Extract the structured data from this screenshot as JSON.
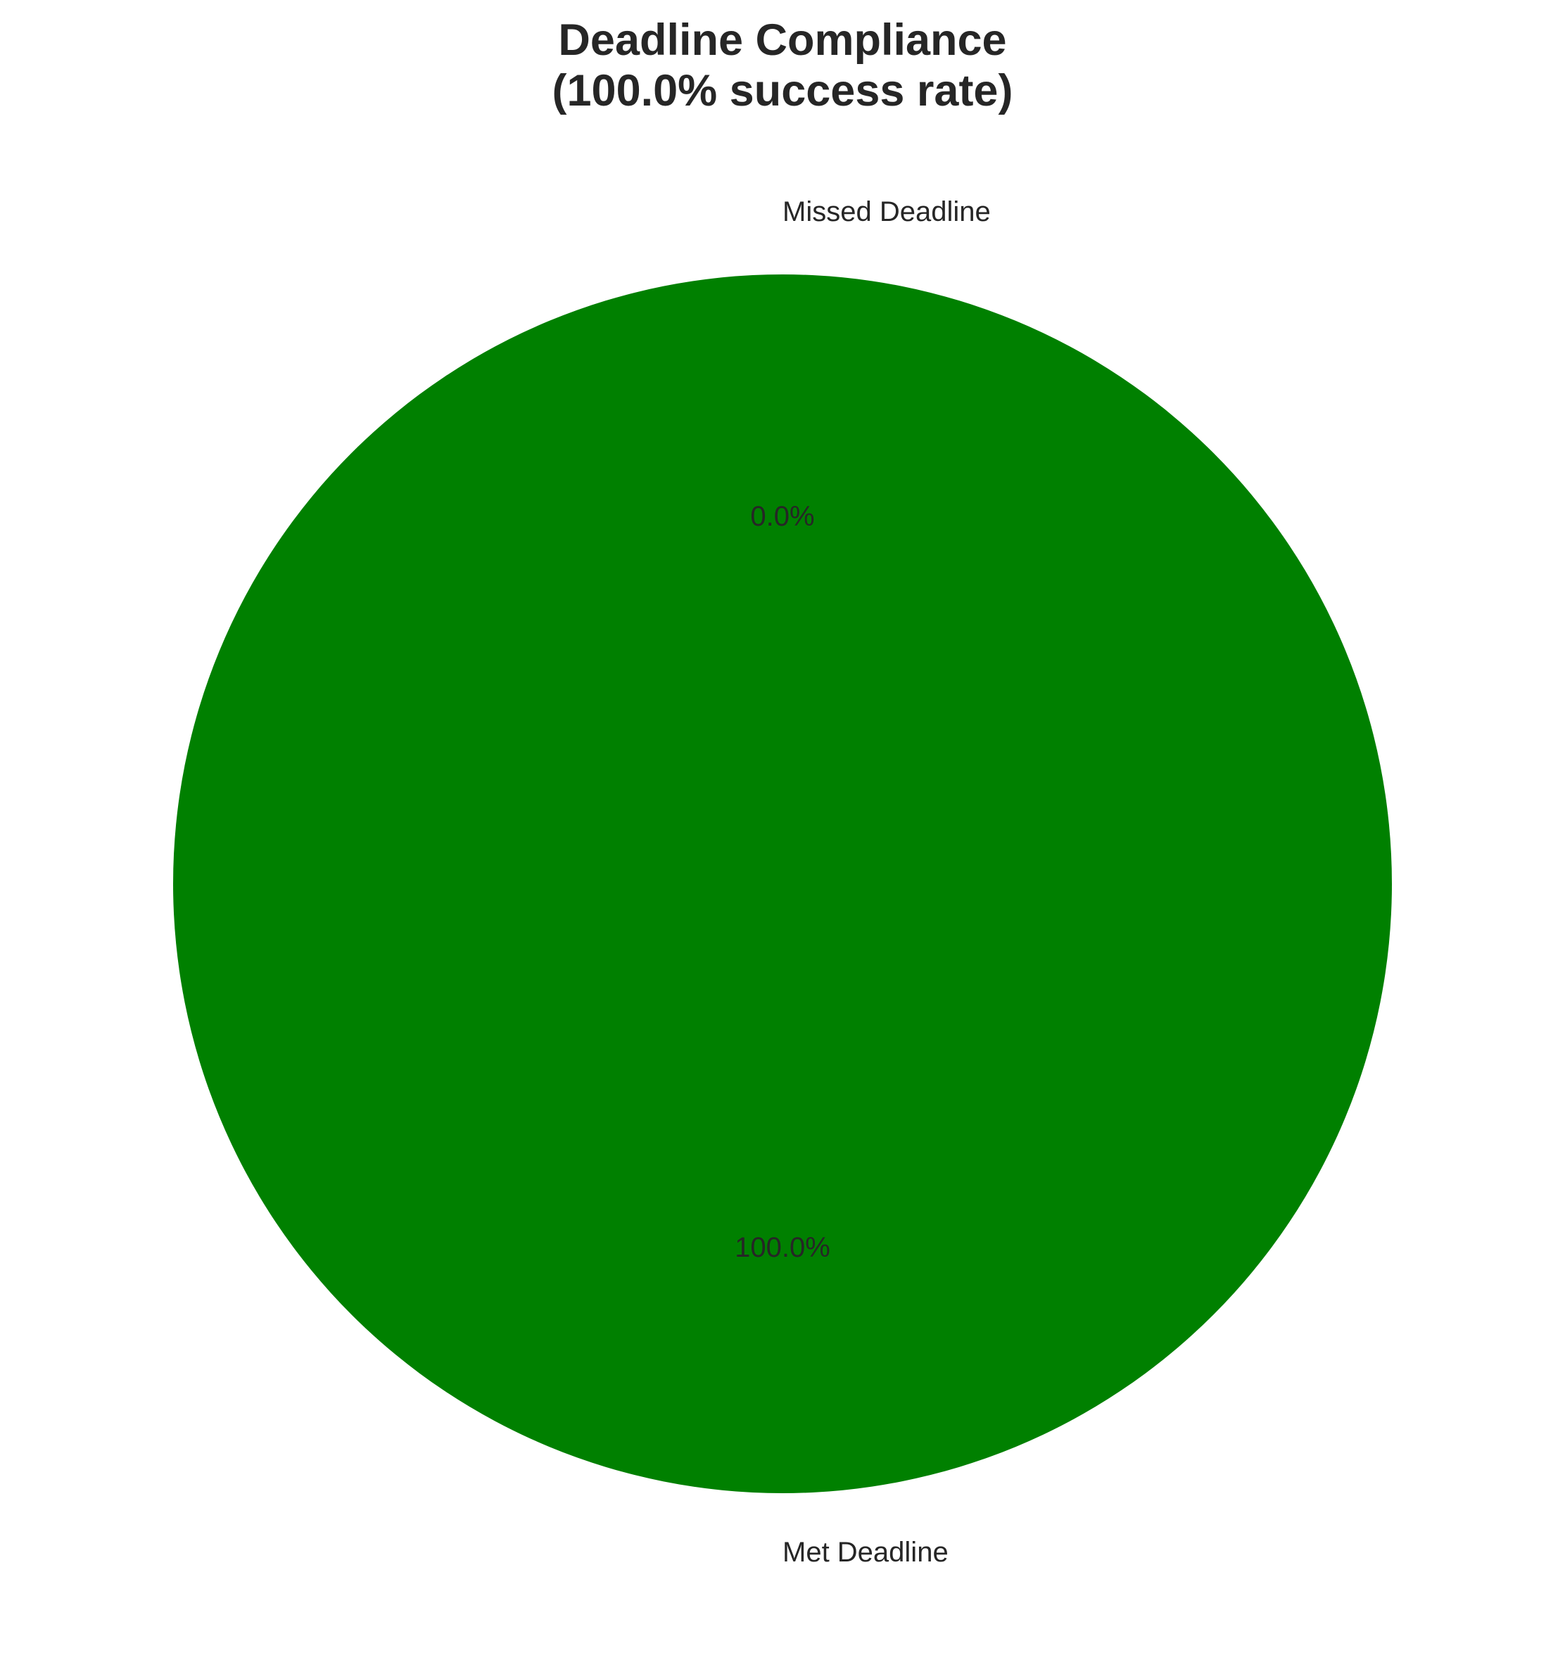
{
  "chart_data": {
    "type": "pie",
    "title": "Deadline Compliance\n(100.0% success rate)",
    "title_lines": [
      "Deadline Compliance",
      "(100.0% success rate)"
    ],
    "categories": [
      "Met Deadline",
      "Missed Deadline"
    ],
    "values": [
      100.0,
      0.0
    ],
    "percent_labels": [
      "100.0%",
      "0.0%"
    ],
    "colors": [
      "#008000",
      "#ff0000"
    ],
    "start_angle_deg": 90,
    "legend": "none"
  }
}
